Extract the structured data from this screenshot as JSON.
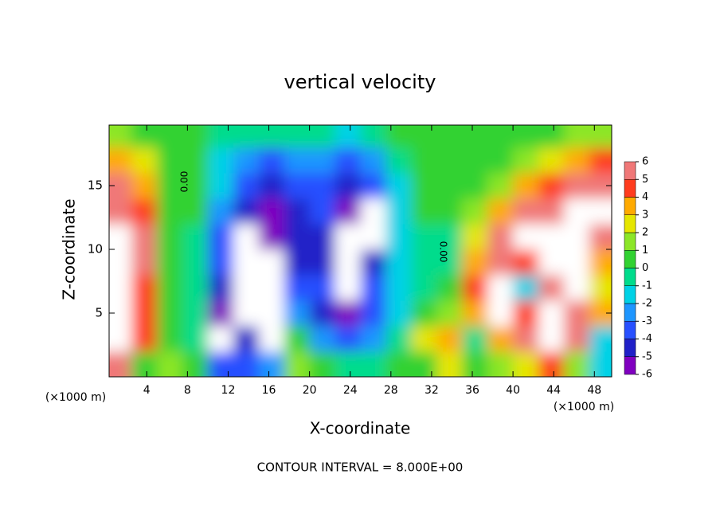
{
  "chart_data": {
    "type": "heatmap",
    "title": "vertical velocity",
    "x_label": "X-coordinate",
    "y_label": "Z-coordinate",
    "unit_labels": [
      "(×1000 m)",
      "(×1000 m)"
    ],
    "footer": "CONTOUR INTERVAL = 8.000E+00",
    "contour_labels": [
      "0.00",
      "0.00"
    ],
    "xlim": [
      0.3,
      49.7
    ],
    "xticks": [
      4,
      8,
      12,
      16,
      20,
      24,
      28,
      32,
      36,
      40,
      44,
      48
    ],
    "ylim": [
      0,
      19.75
    ],
    "yticks": [
      5,
      10,
      15
    ],
    "x": [
      1.25,
      3.75,
      6.25,
      8.75,
      11.25,
      13.75,
      16.25,
      18.75,
      21.25,
      23.75,
      26.25,
      28.75,
      31.25,
      33.75,
      36.25,
      38.75,
      41.25,
      43.75,
      46.25,
      48.75
    ],
    "z": [
      1,
      3,
      5,
      7,
      9,
      11,
      13,
      15,
      17,
      19
    ],
    "values": [
      [
        6,
        0.5,
        1,
        0,
        -4,
        -4,
        -3,
        1,
        0,
        -1,
        -1,
        0,
        0.5,
        2,
        0,
        1,
        2,
        4,
        1,
        -2
      ],
      [
        7,
        4,
        0.5,
        -0.5,
        -7,
        -5,
        -7,
        0,
        -3,
        -4,
        -3,
        -1,
        2,
        3,
        -1,
        3,
        5,
        7,
        5,
        -2
      ],
      [
        7,
        4,
        0.5,
        -1,
        -6,
        -7,
        -7,
        -3,
        -5,
        -6,
        -4,
        -2,
        0,
        1,
        3,
        7,
        4,
        7,
        6,
        3
      ],
      [
        7,
        4,
        0.5,
        -1,
        -5,
        -8,
        -7,
        -4,
        -4,
        -7,
        -4,
        -2,
        -1,
        0,
        4,
        7,
        -2,
        6,
        7,
        2
      ],
      [
        7,
        5,
        0.5,
        -1,
        -4,
        -8,
        -7,
        -5,
        -5,
        -7,
        -5,
        -2,
        -1,
        -0.5,
        3,
        6,
        4,
        7,
        7,
        3
      ],
      [
        7,
        5,
        0.5,
        -0.5,
        -4,
        -7,
        -6,
        -5,
        -5,
        -8,
        -7,
        -2,
        -0.5,
        -0.5,
        2,
        5,
        7,
        7,
        7,
        5
      ],
      [
        5.5,
        4,
        0.5,
        0,
        -3,
        -5,
        -6,
        -5,
        -4,
        -6,
        -7,
        -2,
        0,
        0,
        1,
        3,
        5,
        6,
        7,
        7
      ],
      [
        5,
        3,
        0.5,
        0,
        -2,
        -4,
        -4.5,
        -4,
        -4,
        -5,
        -4,
        -1.5,
        0,
        0.5,
        0.5,
        1,
        3,
        4,
        5,
        6
      ],
      [
        3,
        2,
        0.5,
        0,
        -1.5,
        -3,
        -3.5,
        -3,
        -3,
        -3.5,
        -3,
        -1,
        0,
        0.5,
        0.5,
        0.5,
        1,
        2,
        3,
        4
      ],
      [
        1,
        0.5,
        0,
        0,
        -1,
        -1,
        -1,
        -1,
        -1,
        -1.5,
        -1,
        0,
        0.5,
        0.5,
        0.5,
        0.5,
        0.5,
        0.5,
        1,
        1.5
      ]
    ],
    "colorbar_ticks": [
      6,
      5,
      4,
      3,
      2,
      1,
      0,
      -1,
      -2,
      -3,
      -4,
      -5,
      -6
    ],
    "colorbar_colors": [
      "#8000c0",
      "#2020c8",
      "#2850ff",
      "#1e96ff",
      "#00d2e6",
      "#00dc8c",
      "#32d232",
      "#8ce628",
      "#e6e600",
      "#ffaa00",
      "#ff3c1e",
      "#f07878"
    ],
    "out_of_range_color": "#ffffff"
  }
}
